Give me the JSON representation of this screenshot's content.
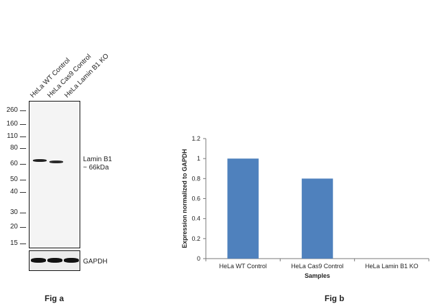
{
  "western_blot": {
    "lanes": [
      "HeLa WT Control",
      "HeLa Cas9 Control",
      "HeLa Lamin B1 KO"
    ],
    "mw_markers": [
      "260",
      "160",
      "110",
      "80",
      "60",
      "50",
      "40",
      "30",
      "20",
      "15"
    ],
    "band_label_line1": "Lamin B1",
    "band_label_line2": "~ 66kDa",
    "loading_control_label": "GAPDH",
    "band_color": "#1a1a1a",
    "figure_label": "Fig a"
  },
  "chart_data": {
    "type": "bar",
    "categories": [
      "HeLa WT Control",
      "HeLa Cas9 Control",
      "HeLa Lamin B1 KO"
    ],
    "values": [
      1.0,
      0.8,
      0.0
    ],
    "title": "",
    "xlabel": "Samples",
    "ylabel": "Expression  normalized to GAPDH",
    "ylim": [
      0,
      1.2
    ],
    "yticks": [
      "0",
      "0.2",
      "0.4",
      "0.6",
      "0.8",
      "1",
      "1.2"
    ],
    "bar_color": "#4f81bd",
    "grid": false,
    "figure_label": "Fig b"
  }
}
